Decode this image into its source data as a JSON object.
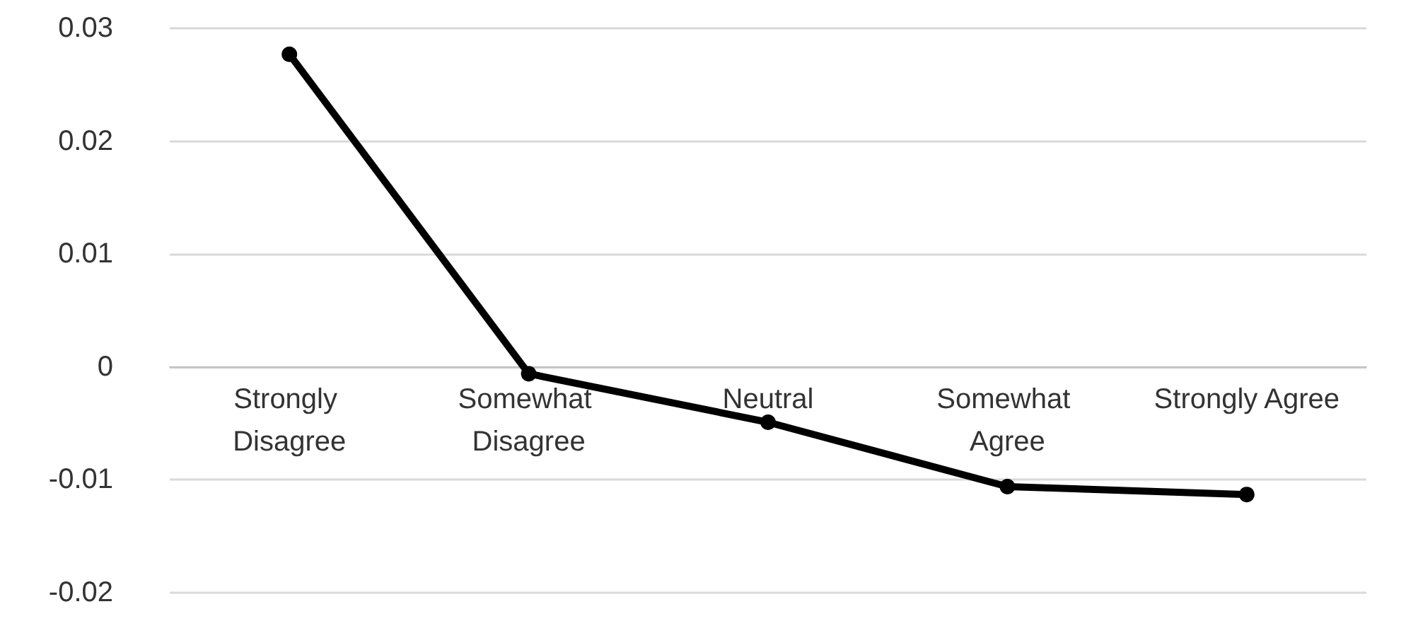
{
  "chart_data": {
    "type": "line",
    "categories": [
      "Strongly Disagree",
      "Somewhat Disagree",
      "Neutral",
      "Somewhat Agree",
      "Strongly Agree"
    ],
    "series": [
      {
        "color": "#000000",
        "values": [
          0.0277,
          -0.0006,
          -0.0049,
          -0.0106,
          -0.0113
        ]
      }
    ],
    "ylim": [
      -0.02,
      0.03
    ],
    "yticks": [
      -0.02,
      -0.01,
      0,
      0.01,
      0.02,
      0.03
    ],
    "grid": "y",
    "marker": "circle",
    "line_style": "solid"
  }
}
